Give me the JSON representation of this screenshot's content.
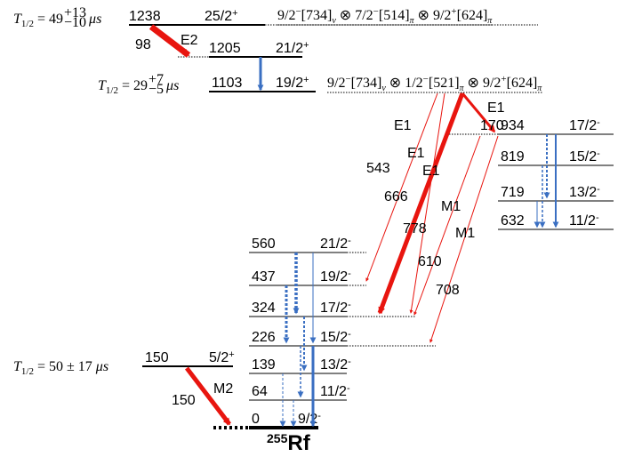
{
  "half_lives": [
    {
      "symbol": "T",
      "sub": "1/2",
      "value": "= 49",
      "plus": "+13",
      "minus": "−10",
      "unit": "μs"
    },
    {
      "symbol": "T",
      "sub": "1/2",
      "value": "= 29",
      "plus": "+7",
      "minus": "−5",
      "unit": "μs"
    },
    {
      "symbol": "T",
      "sub": "1/2",
      "value": "= 50 ± 17",
      "unit": "μs"
    }
  ],
  "configurations": [
    {
      "joiner": "⊗",
      "orbitals": [
        {
          "spin": "9/2",
          "parity": "−",
          "nilsson": "[734]",
          "sub": "ν"
        },
        {
          "spin": "7/2",
          "parity": "−",
          "nilsson": "[514]",
          "sub": "π"
        },
        {
          "spin": "9/2",
          "parity": "+",
          "nilsson": "[624]",
          "sub": "π"
        }
      ]
    },
    {
      "joiner": "⊗",
      "orbitals": [
        {
          "spin": "9/2",
          "parity": "−",
          "nilsson": "[734]",
          "sub": "ν"
        },
        {
          "spin": "1/2",
          "parity": "−",
          "nilsson": "[521]",
          "sub": "π"
        },
        {
          "spin": "9/2",
          "parity": "+",
          "nilsson": "[624]",
          "sub": "π"
        }
      ]
    }
  ],
  "levels": [
    {
      "energy": "1238",
      "spin": "25/2",
      "parity": "+"
    },
    {
      "energy": "1205",
      "spin": "21/2",
      "parity": "+"
    },
    {
      "energy": "1103",
      "spin": "19/2",
      "parity": "+"
    },
    {
      "energy": "934",
      "spin": "17/2",
      "parity": "-"
    },
    {
      "energy": "819",
      "spin": "15/2",
      "parity": "-"
    },
    {
      "energy": "719",
      "spin": "13/2",
      "parity": "-"
    },
    {
      "energy": "632",
      "spin": "11/2",
      "parity": "-"
    },
    {
      "energy": "560",
      "spin": "21/2",
      "parity": "-"
    },
    {
      "energy": "437",
      "spin": "19/2",
      "parity": "-"
    },
    {
      "energy": "324",
      "spin": "17/2",
      "parity": "-"
    },
    {
      "energy": "226",
      "spin": "15/2",
      "parity": "-"
    },
    {
      "energy": "139",
      "spin": "13/2",
      "parity": "-"
    },
    {
      "energy": "64",
      "spin": "11/2",
      "parity": "-"
    },
    {
      "energy": "0",
      "spin": "9/2",
      "parity": "-"
    },
    {
      "energy": "150",
      "spin": "5/2",
      "parity": "+"
    }
  ],
  "transitions": [
    {
      "energy": "98",
      "multipolarity": "E2"
    },
    {
      "energy": "543",
      "multipolarity": "E1"
    },
    {
      "energy": "666",
      "multipolarity": "E1"
    },
    {
      "energy": "778",
      "multipolarity": "E1"
    },
    {
      "energy": "170",
      "multipolarity": "E1"
    },
    {
      "energy": "610",
      "multipolarity": "M1"
    },
    {
      "energy": "708",
      "multipolarity": "M1"
    },
    {
      "energy": "150",
      "multipolarity": "M2"
    }
  ],
  "nucleus": {
    "mass": "255",
    "symbol": "Rf"
  }
}
